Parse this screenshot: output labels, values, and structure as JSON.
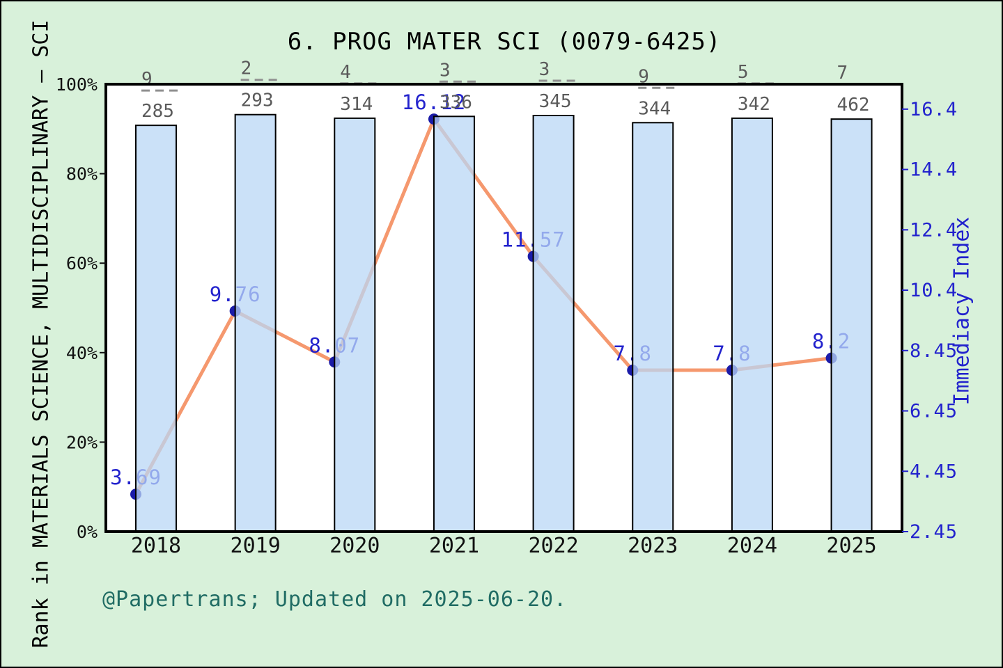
{
  "figure": {
    "title": "6. PROG MATER SCI (0079-6425)",
    "annotation": "@Papertrans; Updated on 2025-06-20.",
    "left_axis_label": "Rank in MATERIALS SCIENCE, MULTIDISCIPLINARY — SCI",
    "right_axis_label": "Immediacy Index"
  },
  "chart_data": {
    "type": "bar+line combo",
    "title": "6. PROG MATER SCI (0079-6425)",
    "categories": [
      "2018",
      "2019",
      "2020",
      "2021",
      "2022",
      "2023",
      "2024",
      "2025"
    ],
    "series": [
      {
        "name": "rank-percentile-bars",
        "type": "bar",
        "axis": "left",
        "unit": "%",
        "values": [
          90.8,
          93.2,
          92.4,
          92.8,
          93.0,
          91.4,
          92.4,
          92.2
        ],
        "rank_fractions": [
          {
            "rank": "9",
            "total": "285"
          },
          {
            "rank": "2",
            "total": "293"
          },
          {
            "rank": "4",
            "total": "314"
          },
          {
            "rank": "3",
            "total": "336"
          },
          {
            "rank": "3",
            "total": "345"
          },
          {
            "rank": "9",
            "total": "344"
          },
          {
            "rank": "5",
            "total": "342"
          },
          {
            "rank": "7",
            "total": "462"
          }
        ]
      },
      {
        "name": "immediacy-index-line",
        "type": "line",
        "axis": "right",
        "values": [
          3.69,
          9.76,
          8.07,
          16.12,
          11.57,
          7.8,
          7.8,
          8.2
        ],
        "labels": [
          "3.69",
          "9.76",
          "8.07",
          "16.12",
          "11.57",
          "7.8",
          "7.8",
          "8.2"
        ]
      }
    ],
    "left_axis": {
      "label": "Rank in MATERIALS SCIENCE, MULTIDISCIPLINARY — SCI",
      "ticks": [
        "0%",
        "20%",
        "40%",
        "60%",
        "80%",
        "100%"
      ],
      "tick_values": [
        0,
        20,
        40,
        60,
        80,
        100
      ],
      "range": [
        0,
        100
      ]
    },
    "right_axis": {
      "label": "Immediacy Index",
      "ticks": [
        "2.45",
        "4.45",
        "6.45",
        "8.45",
        "10.4",
        "12.4",
        "14.4",
        "16.4"
      ],
      "tick_values": [
        2.45,
        4.45,
        6.45,
        8.45,
        10.45,
        12.45,
        14.45,
        16.45
      ],
      "min": 2.45
    },
    "legend": "none",
    "grid": false,
    "colors": {
      "background": "#D8F1DA",
      "plot_background": "#FFFFFF",
      "bar_fill_rgba": "rgba(185,215,245,0.75)",
      "bar_apparent": "#C8E1F7",
      "bar_edge": "#000000",
      "line": "#F5986E",
      "marker": "#1B1BA8",
      "value_label": "#2222CD",
      "right_axis_color": "#2222CD",
      "left_axis_color": "#111111",
      "fraction_text": "#5A5A5A",
      "fraction_dash": "#909090",
      "annotation_color": "#206C64",
      "border": "#000000"
    }
  }
}
